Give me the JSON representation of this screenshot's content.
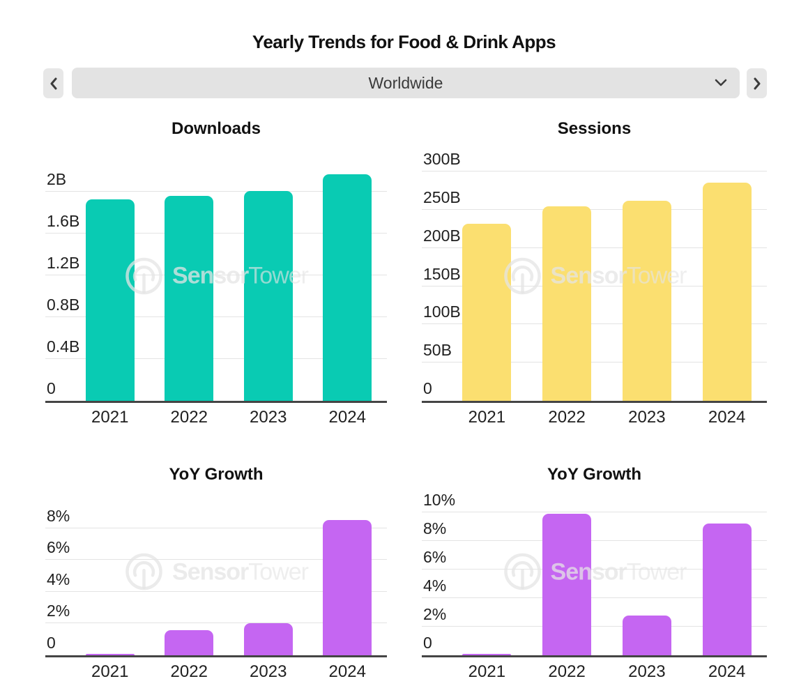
{
  "page": {
    "title": "Yearly Trends for Food & Drink Apps"
  },
  "selector": {
    "value": "Worldwide",
    "prev_icon": "chevron-left-icon",
    "next_icon": "chevron-right-icon",
    "dropdown_icon": "chevron-down-icon"
  },
  "watermark": {
    "brand_bold": "Sensor",
    "brand_light": "Tower",
    "logo_icon": "sensor-tower-logo-icon"
  },
  "colors": {
    "downloads_bar": "#09cbb3",
    "sessions_bar": "#fbdf70",
    "yoy_bar": "#c566f2",
    "axis": "#454545",
    "gridline": "#e3e3e3",
    "control_bg": "#e3e3e3"
  },
  "chart_data": [
    {
      "type": "bar",
      "title": "Downloads",
      "categories": [
        "2021",
        "2022",
        "2023",
        "2024"
      ],
      "values": [
        1.93,
        1.96,
        2.01,
        2.17
      ],
      "unit": "B",
      "yticks": [
        0,
        0.4,
        0.8,
        1.2,
        1.6,
        2
      ],
      "ytick_labels": [
        "0",
        "0.4B",
        "0.8B",
        "1.2B",
        "1.6B",
        "2B"
      ],
      "ylim": [
        0,
        2.3
      ],
      "plot_max": 2.3,
      "bar_color": "#09cbb3",
      "grid": "horizontal",
      "legend": "none",
      "xlabel": "",
      "ylabel": ""
    },
    {
      "type": "bar",
      "title": "Sessions",
      "categories": [
        "2021",
        "2022",
        "2023",
        "2024"
      ],
      "values": [
        232,
        255,
        262,
        286
      ],
      "unit": "B",
      "yticks": [
        0,
        50,
        100,
        150,
        200,
        250,
        300
      ],
      "ytick_labels": [
        "0",
        "50B",
        "100B",
        "150B",
        "200B",
        "250B",
        "300B"
      ],
      "ylim": [
        0,
        315
      ],
      "plot_max": 315,
      "bar_color": "#fbdf70",
      "grid": "horizontal",
      "legend": "none",
      "xlabel": "",
      "ylabel": ""
    },
    {
      "type": "bar",
      "title": "YoY Growth",
      "categories": [
        "2021",
        "2022",
        "2023",
        "2024"
      ],
      "values": [
        0.1,
        1.6,
        2.0,
        8.5
      ],
      "unit": "%",
      "yticks": [
        0,
        2,
        4,
        6,
        8
      ],
      "ytick_labels": [
        "0",
        "2%",
        "4%",
        "6%",
        "8%"
      ],
      "ylim": [
        0,
        10.1
      ],
      "plot_max": 10.1,
      "bar_color": "#c566f2",
      "grid": "horizontal",
      "legend": "none",
      "xlabel": "",
      "ylabel": ""
    },
    {
      "type": "bar",
      "title": "YoY Growth",
      "categories": [
        "2021",
        "2022",
        "2023",
        "2024"
      ],
      "values": [
        0.1,
        9.9,
        2.8,
        9.2
      ],
      "unit": "%",
      "yticks": [
        0,
        2,
        4,
        6,
        8,
        10
      ],
      "ytick_labels": [
        "0",
        "2%",
        "4%",
        "6%",
        "8%",
        "10%"
      ],
      "ylim": [
        0,
        11.2
      ],
      "plot_max": 11.2,
      "bar_color": "#c566f2",
      "grid": "horizontal",
      "legend": "none",
      "xlabel": "",
      "ylabel": ""
    }
  ]
}
